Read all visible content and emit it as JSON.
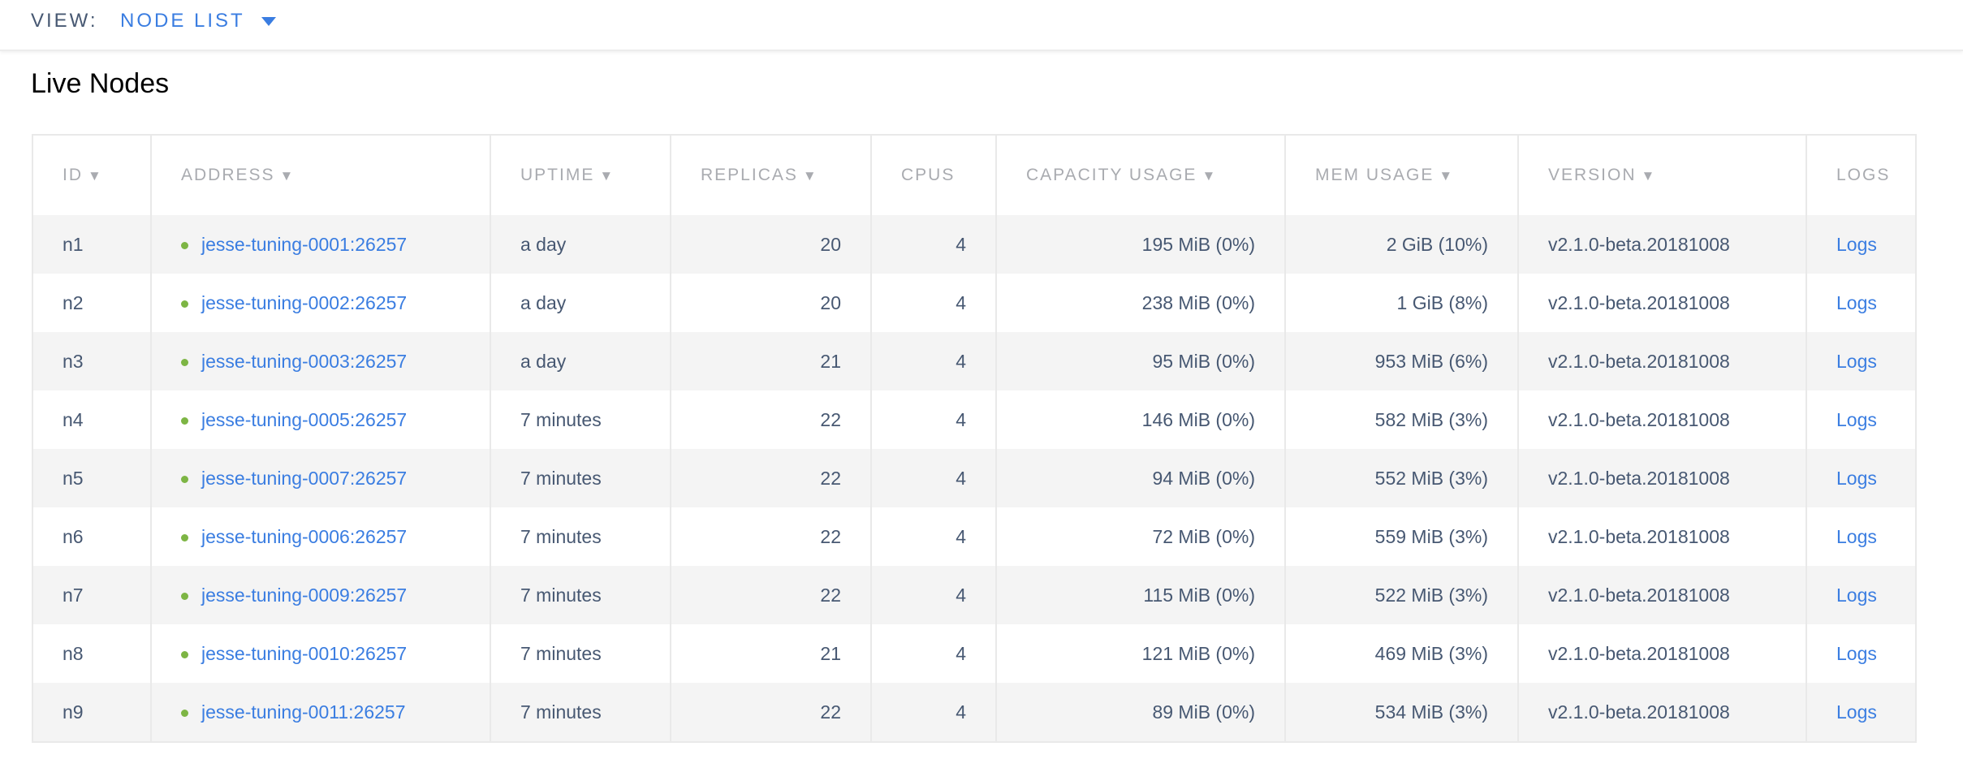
{
  "header": {
    "view_label": "VIEW:",
    "view_value": "NODE LIST"
  },
  "page_title": "Live Nodes",
  "colors": {
    "link": "#3a7de1",
    "text": "#475872",
    "live_dot": "#7db544"
  },
  "table": {
    "columns": [
      {
        "label": "ID",
        "sortable": true
      },
      {
        "label": "ADDRESS",
        "sortable": true
      },
      {
        "label": "UPTIME",
        "sortable": true
      },
      {
        "label": "REPLICAS",
        "sortable": true
      },
      {
        "label": "CPUS",
        "sortable": false
      },
      {
        "label": "CAPACITY USAGE",
        "sortable": true
      },
      {
        "label": "MEM USAGE",
        "sortable": true
      },
      {
        "label": "VERSION",
        "sortable": true
      },
      {
        "label": "LOGS",
        "sortable": false
      }
    ],
    "sort_icon": "▼",
    "rows": [
      {
        "id": "n1",
        "address": "jesse-tuning-0001:26257",
        "uptime": "a day",
        "replicas": "20",
        "cpus": "4",
        "capacity": "195 MiB (0%)",
        "mem": "2 GiB (10%)",
        "version": "v2.1.0-beta.20181008",
        "logs": "Logs"
      },
      {
        "id": "n2",
        "address": "jesse-tuning-0002:26257",
        "uptime": "a day",
        "replicas": "20",
        "cpus": "4",
        "capacity": "238 MiB (0%)",
        "mem": "1 GiB (8%)",
        "version": "v2.1.0-beta.20181008",
        "logs": "Logs"
      },
      {
        "id": "n3",
        "address": "jesse-tuning-0003:26257",
        "uptime": "a day",
        "replicas": "21",
        "cpus": "4",
        "capacity": "95 MiB (0%)",
        "mem": "953 MiB (6%)",
        "version": "v2.1.0-beta.20181008",
        "logs": "Logs"
      },
      {
        "id": "n4",
        "address": "jesse-tuning-0005:26257",
        "uptime": "7 minutes",
        "replicas": "22",
        "cpus": "4",
        "capacity": "146 MiB (0%)",
        "mem": "582 MiB (3%)",
        "version": "v2.1.0-beta.20181008",
        "logs": "Logs"
      },
      {
        "id": "n5",
        "address": "jesse-tuning-0007:26257",
        "uptime": "7 minutes",
        "replicas": "22",
        "cpus": "4",
        "capacity": "94 MiB (0%)",
        "mem": "552 MiB (3%)",
        "version": "v2.1.0-beta.20181008",
        "logs": "Logs"
      },
      {
        "id": "n6",
        "address": "jesse-tuning-0006:26257",
        "uptime": "7 minutes",
        "replicas": "22",
        "cpus": "4",
        "capacity": "72 MiB (0%)",
        "mem": "559 MiB (3%)",
        "version": "v2.1.0-beta.20181008",
        "logs": "Logs"
      },
      {
        "id": "n7",
        "address": "jesse-tuning-0009:26257",
        "uptime": "7 minutes",
        "replicas": "22",
        "cpus": "4",
        "capacity": "115 MiB (0%)",
        "mem": "522 MiB (3%)",
        "version": "v2.1.0-beta.20181008",
        "logs": "Logs"
      },
      {
        "id": "n8",
        "address": "jesse-tuning-0010:26257",
        "uptime": "7 minutes",
        "replicas": "21",
        "cpus": "4",
        "capacity": "121 MiB (0%)",
        "mem": "469 MiB (3%)",
        "version": "v2.1.0-beta.20181008",
        "logs": "Logs"
      },
      {
        "id": "n9",
        "address": "jesse-tuning-0011:26257",
        "uptime": "7 minutes",
        "replicas": "22",
        "cpus": "4",
        "capacity": "89 MiB (0%)",
        "mem": "534 MiB (3%)",
        "version": "v2.1.0-beta.20181008",
        "logs": "Logs"
      }
    ]
  }
}
